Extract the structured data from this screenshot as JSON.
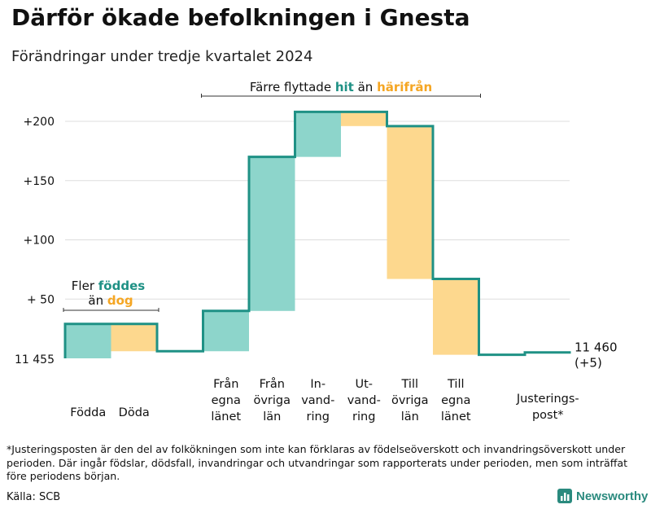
{
  "title": "Därför ökade befolkningen i Gnesta",
  "subtitle": "Förändringar under tredje kvartalet 2024",
  "colors": {
    "increase": "#8dd5cb",
    "decrease": "#fdd88e",
    "line": "#1f9185",
    "grid": "#dddddd",
    "hit": "#1f9185",
    "harifran": "#f5a623"
  },
  "chart_data": {
    "type": "waterfall",
    "y_axis": {
      "base_label": "11 455",
      "min": 0,
      "max": 220,
      "ticks": [
        {
          "value": 50,
          "label": "+ 50"
        },
        {
          "value": 100,
          "label": "+100"
        },
        {
          "value": 150,
          "label": "+150"
        },
        {
          "value": 200,
          "label": "+200"
        }
      ]
    },
    "steps": [
      {
        "label": [
          "Födda"
        ],
        "change": 29,
        "kind": "increase"
      },
      {
        "label": [
          "Döda"
        ],
        "change": -23,
        "kind": "decrease"
      },
      {
        "label": [],
        "change": 0,
        "kind": "spacer"
      },
      {
        "label": [
          "Från",
          "egna",
          "länet"
        ],
        "change": 34,
        "kind": "increase"
      },
      {
        "label": [
          "Från",
          "övriga",
          "län"
        ],
        "change": 130,
        "kind": "increase"
      },
      {
        "label": [
          "In-",
          "vand-",
          "ring"
        ],
        "change": 38,
        "kind": "increase"
      },
      {
        "label": [
          "Ut-",
          "vand-",
          "ring"
        ],
        "change": -12,
        "kind": "decrease"
      },
      {
        "label": [
          "Till",
          "övriga",
          "län"
        ],
        "change": -129,
        "kind": "decrease"
      },
      {
        "label": [
          "Till",
          "egna",
          "länet"
        ],
        "change": -64,
        "kind": "decrease"
      },
      {
        "label": [],
        "change": 0,
        "kind": "spacer"
      },
      {
        "label": [
          "Justerings-",
          "post*"
        ],
        "change": 2,
        "kind": "line"
      }
    ],
    "end_label": [
      "11 460",
      "(+5)"
    ],
    "annotations": {
      "top": {
        "prefix": "Färre flyttade ",
        "hit": "hit",
        "mid": " än ",
        "harifran": "härifrån"
      },
      "left": {
        "line1_prefix": "Fler ",
        "line1_highlight": "föddes",
        "line2_prefix": "än ",
        "line2_highlight": "dog"
      }
    }
  },
  "footnote": "*Justeringsposten är den del av folkökningen som inte kan förklaras av födelseöverskott och invandringsöverskott under perioden. Där ingår födslar, dödsfall, invandringar och utvandringar som rapporterats under perioden, men som inträffat före periodens början.",
  "source": "Källa: SCB",
  "logo": {
    "text": "Newsworthy",
    "icon": "bar-chart-icon"
  }
}
